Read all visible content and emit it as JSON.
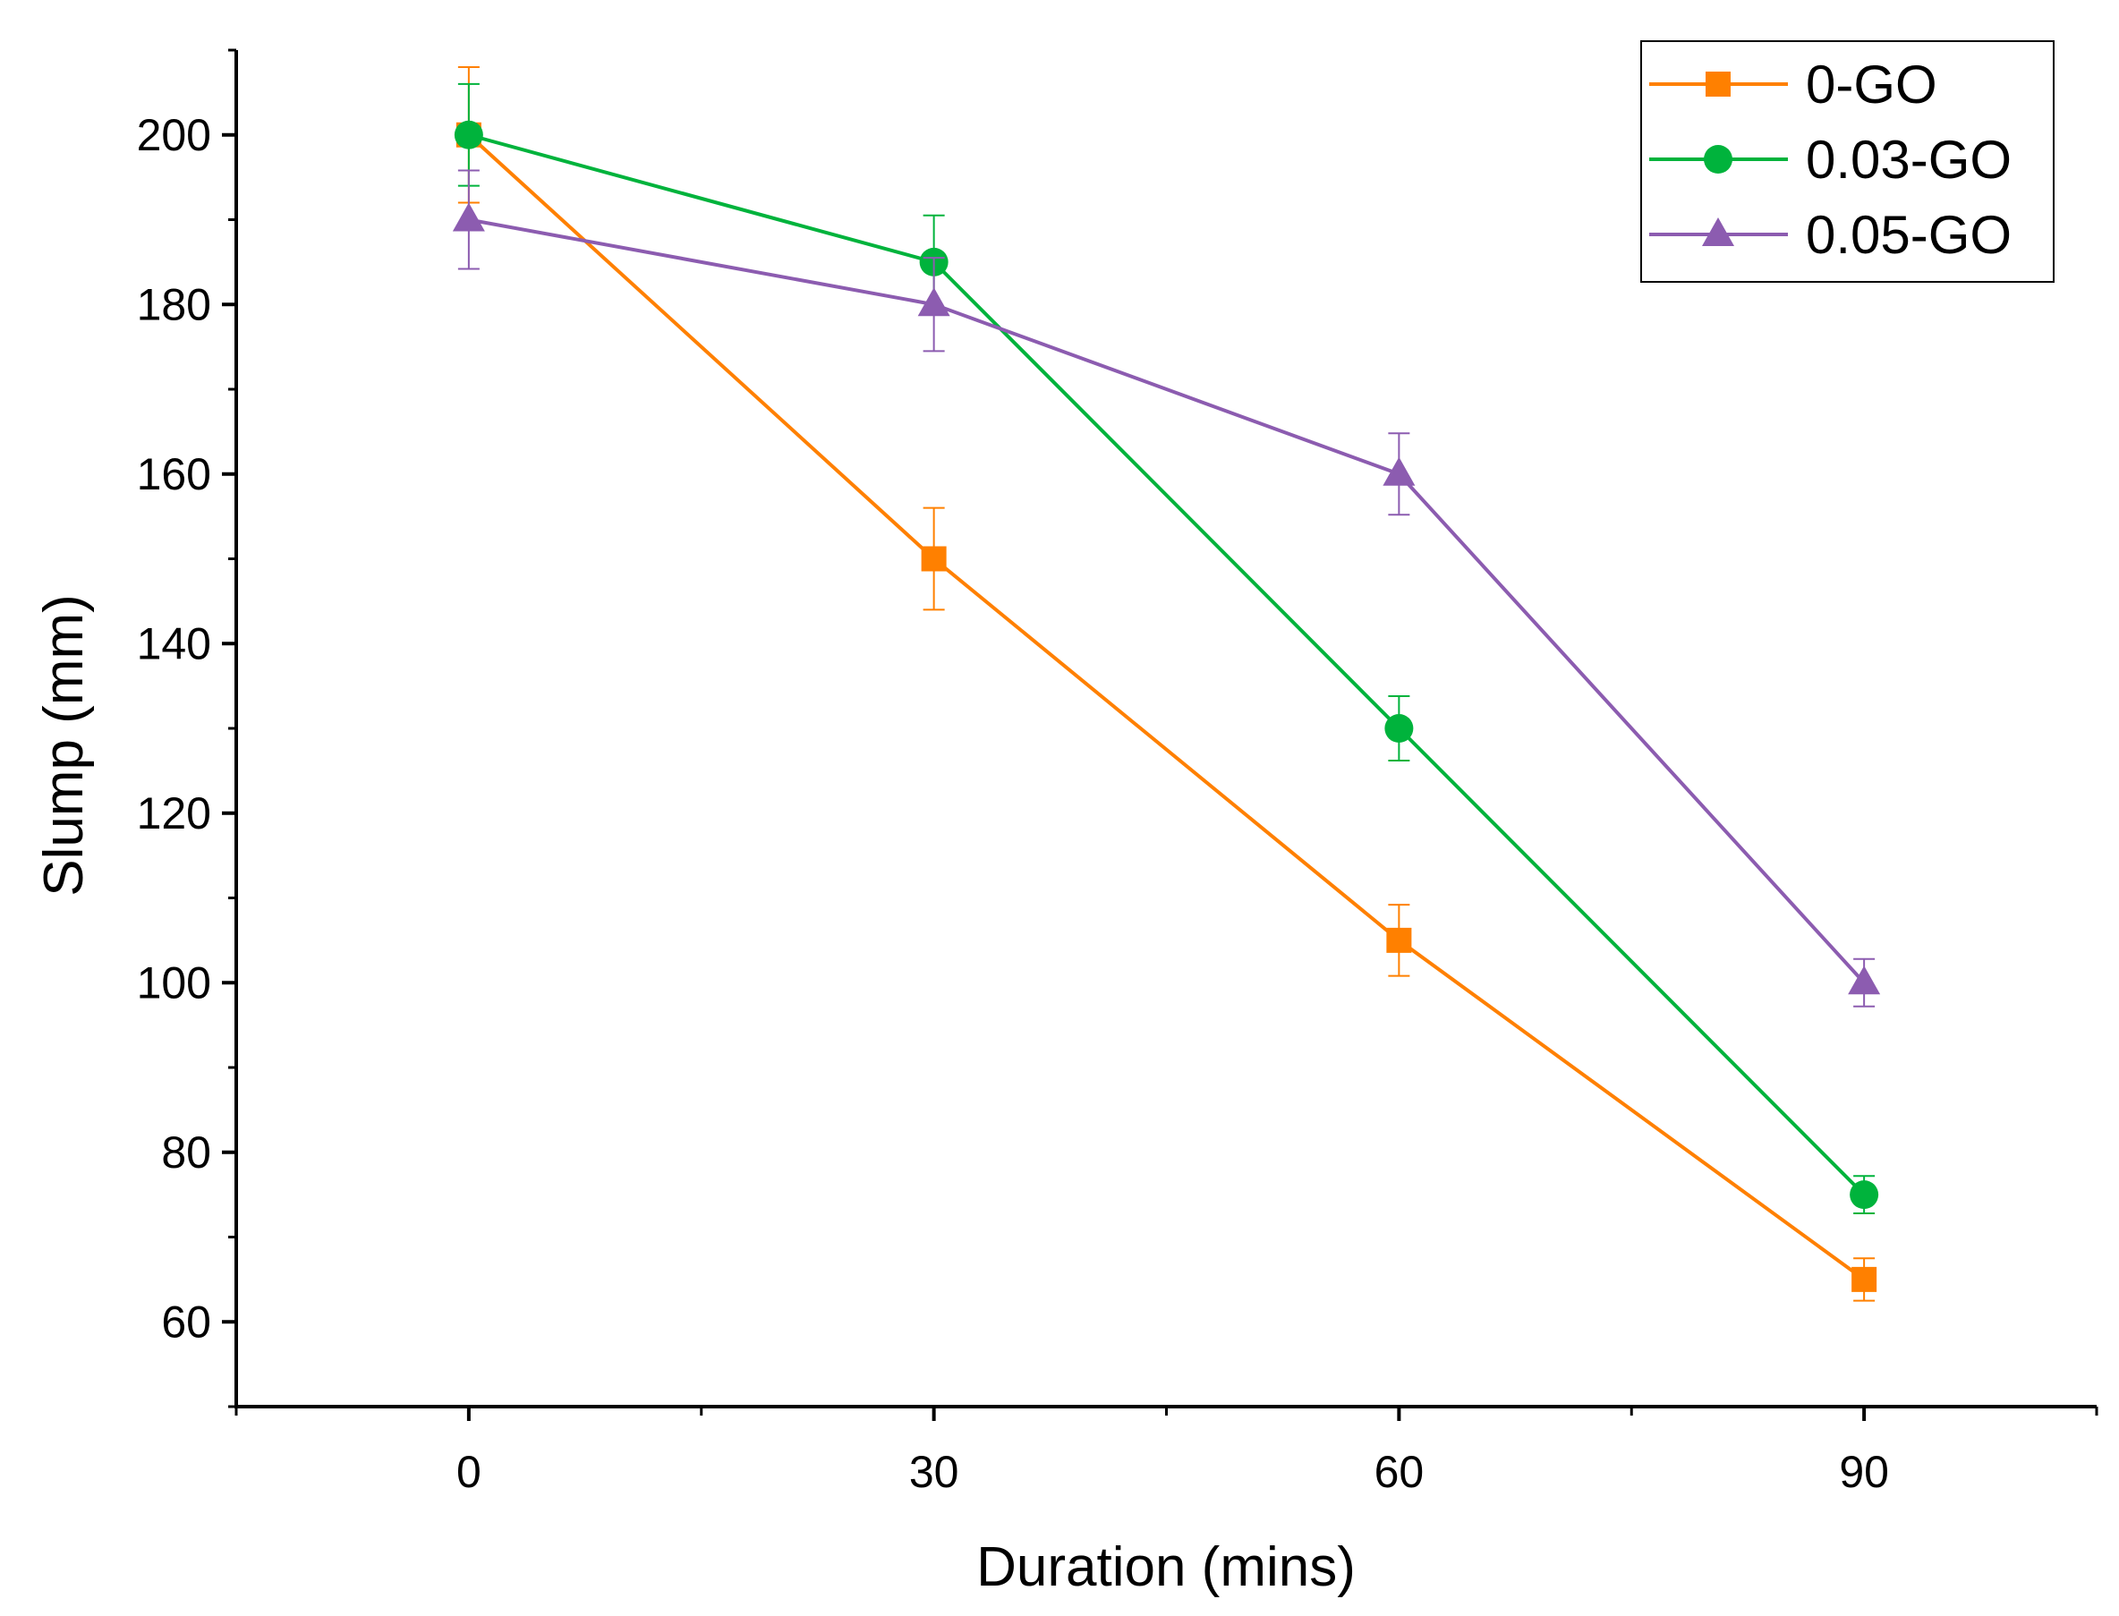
{
  "chart_data": {
    "type": "line",
    "title": "",
    "xlabel": "Duration (mins)",
    "ylabel": "Slump (mm)",
    "x": [
      0,
      30,
      60,
      90
    ],
    "x_tick_labels": [
      "0",
      "30",
      "60",
      "90"
    ],
    "y_tick_labels": [
      "60",
      "80",
      "100",
      "120",
      "140",
      "160",
      "180",
      "200"
    ],
    "xlim": [
      -15,
      105
    ],
    "ylim": [
      50,
      210
    ],
    "legend_position": "top-right",
    "series": [
      {
        "name": "0-GO",
        "marker": "square",
        "color": "#ff8000",
        "values": [
          200,
          150,
          105,
          65
        ],
        "errors": [
          8,
          6,
          4.2,
          2.5
        ]
      },
      {
        "name": "0.03-GO",
        "marker": "circle",
        "color": "#00b33c",
        "values": [
          200,
          185,
          130,
          75
        ],
        "errors": [
          6,
          5.5,
          3.8,
          2.2
        ]
      },
      {
        "name": "0.05-GO",
        "marker": "triangle",
        "color": "#8c5cb0",
        "values": [
          190,
          180,
          160,
          100
        ],
        "errors": [
          5.8,
          5.5,
          4.8,
          2.8
        ]
      }
    ]
  }
}
